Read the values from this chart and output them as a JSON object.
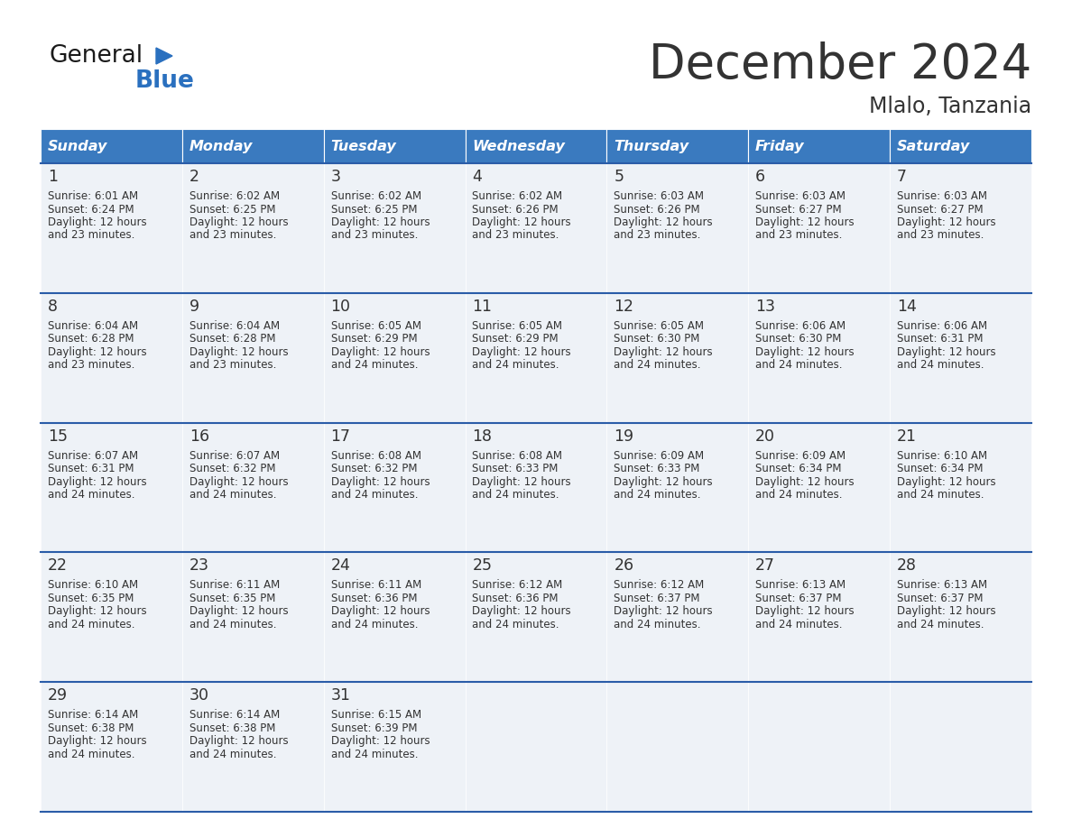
{
  "title": "December 2024",
  "subtitle": "Mlalo, Tanzania",
  "header_color": "#3a7abf",
  "header_text_color": "#ffffff",
  "cell_bg_even": "#eef2f7",
  "cell_bg_odd": "#ffffff",
  "divider_color": "#2a5ca8",
  "text_color": "#333333",
  "days_of_week": [
    "Sunday",
    "Monday",
    "Tuesday",
    "Wednesday",
    "Thursday",
    "Friday",
    "Saturday"
  ],
  "weeks": [
    [
      {
        "day": 1,
        "sunrise": "6:01 AM",
        "sunset": "6:24 PM",
        "daylight_hours": 12,
        "daylight_minutes": 23
      },
      {
        "day": 2,
        "sunrise": "6:02 AM",
        "sunset": "6:25 PM",
        "daylight_hours": 12,
        "daylight_minutes": 23
      },
      {
        "day": 3,
        "sunrise": "6:02 AM",
        "sunset": "6:25 PM",
        "daylight_hours": 12,
        "daylight_minutes": 23
      },
      {
        "day": 4,
        "sunrise": "6:02 AM",
        "sunset": "6:26 PM",
        "daylight_hours": 12,
        "daylight_minutes": 23
      },
      {
        "day": 5,
        "sunrise": "6:03 AM",
        "sunset": "6:26 PM",
        "daylight_hours": 12,
        "daylight_minutes": 23
      },
      {
        "day": 6,
        "sunrise": "6:03 AM",
        "sunset": "6:27 PM",
        "daylight_hours": 12,
        "daylight_minutes": 23
      },
      {
        "day": 7,
        "sunrise": "6:03 AM",
        "sunset": "6:27 PM",
        "daylight_hours": 12,
        "daylight_minutes": 23
      }
    ],
    [
      {
        "day": 8,
        "sunrise": "6:04 AM",
        "sunset": "6:28 PM",
        "daylight_hours": 12,
        "daylight_minutes": 23
      },
      {
        "day": 9,
        "sunrise": "6:04 AM",
        "sunset": "6:28 PM",
        "daylight_hours": 12,
        "daylight_minutes": 23
      },
      {
        "day": 10,
        "sunrise": "6:05 AM",
        "sunset": "6:29 PM",
        "daylight_hours": 12,
        "daylight_minutes": 24
      },
      {
        "day": 11,
        "sunrise": "6:05 AM",
        "sunset": "6:29 PM",
        "daylight_hours": 12,
        "daylight_minutes": 24
      },
      {
        "day": 12,
        "sunrise": "6:05 AM",
        "sunset": "6:30 PM",
        "daylight_hours": 12,
        "daylight_minutes": 24
      },
      {
        "day": 13,
        "sunrise": "6:06 AM",
        "sunset": "6:30 PM",
        "daylight_hours": 12,
        "daylight_minutes": 24
      },
      {
        "day": 14,
        "sunrise": "6:06 AM",
        "sunset": "6:31 PM",
        "daylight_hours": 12,
        "daylight_minutes": 24
      }
    ],
    [
      {
        "day": 15,
        "sunrise": "6:07 AM",
        "sunset": "6:31 PM",
        "daylight_hours": 12,
        "daylight_minutes": 24
      },
      {
        "day": 16,
        "sunrise": "6:07 AM",
        "sunset": "6:32 PM",
        "daylight_hours": 12,
        "daylight_minutes": 24
      },
      {
        "day": 17,
        "sunrise": "6:08 AM",
        "sunset": "6:32 PM",
        "daylight_hours": 12,
        "daylight_minutes": 24
      },
      {
        "day": 18,
        "sunrise": "6:08 AM",
        "sunset": "6:33 PM",
        "daylight_hours": 12,
        "daylight_minutes": 24
      },
      {
        "day": 19,
        "sunrise": "6:09 AM",
        "sunset": "6:33 PM",
        "daylight_hours": 12,
        "daylight_minutes": 24
      },
      {
        "day": 20,
        "sunrise": "6:09 AM",
        "sunset": "6:34 PM",
        "daylight_hours": 12,
        "daylight_minutes": 24
      },
      {
        "day": 21,
        "sunrise": "6:10 AM",
        "sunset": "6:34 PM",
        "daylight_hours": 12,
        "daylight_minutes": 24
      }
    ],
    [
      {
        "day": 22,
        "sunrise": "6:10 AM",
        "sunset": "6:35 PM",
        "daylight_hours": 12,
        "daylight_minutes": 24
      },
      {
        "day": 23,
        "sunrise": "6:11 AM",
        "sunset": "6:35 PM",
        "daylight_hours": 12,
        "daylight_minutes": 24
      },
      {
        "day": 24,
        "sunrise": "6:11 AM",
        "sunset": "6:36 PM",
        "daylight_hours": 12,
        "daylight_minutes": 24
      },
      {
        "day": 25,
        "sunrise": "6:12 AM",
        "sunset": "6:36 PM",
        "daylight_hours": 12,
        "daylight_minutes": 24
      },
      {
        "day": 26,
        "sunrise": "6:12 AM",
        "sunset": "6:37 PM",
        "daylight_hours": 12,
        "daylight_minutes": 24
      },
      {
        "day": 27,
        "sunrise": "6:13 AM",
        "sunset": "6:37 PM",
        "daylight_hours": 12,
        "daylight_minutes": 24
      },
      {
        "day": 28,
        "sunrise": "6:13 AM",
        "sunset": "6:37 PM",
        "daylight_hours": 12,
        "daylight_minutes": 24
      }
    ],
    [
      {
        "day": 29,
        "sunrise": "6:14 AM",
        "sunset": "6:38 PM",
        "daylight_hours": 12,
        "daylight_minutes": 24
      },
      {
        "day": 30,
        "sunrise": "6:14 AM",
        "sunset": "6:38 PM",
        "daylight_hours": 12,
        "daylight_minutes": 24
      },
      {
        "day": 31,
        "sunrise": "6:15 AM",
        "sunset": "6:39 PM",
        "daylight_hours": 12,
        "daylight_minutes": 24
      },
      null,
      null,
      null,
      null
    ]
  ],
  "logo_text_general": "General",
  "logo_text_blue": "Blue",
  "logo_color_general": "#1a1a1a",
  "logo_color_blue": "#2a70bf"
}
